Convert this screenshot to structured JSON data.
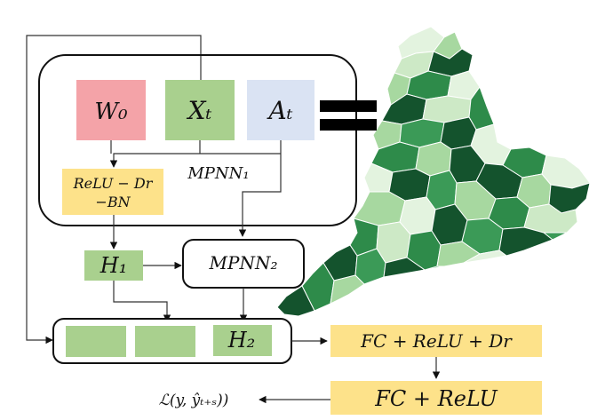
{
  "colors": {
    "pink": "#f4a3a8",
    "green": "#a9d08e",
    "blue": "#dae3f3",
    "yellow": "#fde28a",
    "map_dark": "#14532d",
    "map_mid": "#2e8b4a",
    "map_light": "#a7d8a0",
    "map_pale": "#e3f3df"
  },
  "icons": [
    "equals-sign-icon",
    "england-regions-map"
  ],
  "nodes": {
    "w0": "W₀",
    "xt": "Xₜ",
    "at": "Aₜ",
    "mpnn1": "MPNN₁",
    "relu_dr": "ReLU − Dr",
    "bn": "−BN",
    "h1": "H₁",
    "mpnn2": "MPNN₂",
    "h2": "H₂",
    "fc1": "FC + ReLU + Dr",
    "fc2": "FC + ReLU",
    "loss": "ℒ(y, ŷₜ₊ₛ))"
  }
}
